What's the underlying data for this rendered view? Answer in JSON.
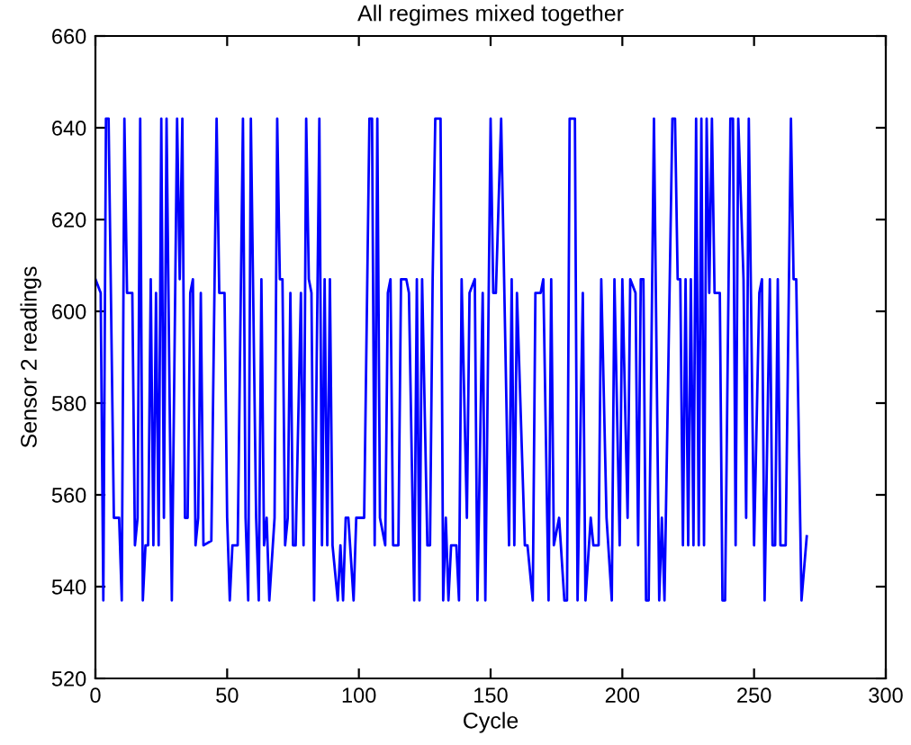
{
  "chart_data": {
    "type": "line",
    "title": "All regimes mixed together",
    "xlabel": "Cycle",
    "ylabel": "Sensor 2 readings",
    "xlim": [
      0,
      300
    ],
    "xticks": [
      0,
      50,
      100,
      150,
      200,
      250,
      300
    ],
    "ylim": [
      520,
      660
    ],
    "yticks": [
      520,
      540,
      560,
      580,
      600,
      620,
      640,
      660
    ],
    "grid": false,
    "legend": false,
    "marker": "none",
    "line_style": "solid",
    "series": [
      {
        "color": "#0000ff",
        "x": [
          0,
          2,
          3,
          4,
          5,
          7,
          9,
          10,
          11,
          12,
          14,
          15,
          16,
          17,
          18,
          19,
          20,
          21,
          22,
          23,
          24,
          25,
          26,
          27,
          29,
          31,
          32,
          33,
          34,
          35,
          36,
          37,
          38,
          39,
          40,
          41,
          44,
          46,
          47,
          49,
          50,
          51,
          52,
          54,
          56,
          57,
          58,
          59,
          61,
          62,
          63,
          64,
          65,
          66,
          68,
          69,
          70,
          71,
          72,
          73,
          74,
          75,
          76,
          78,
          79,
          80,
          81,
          82,
          83,
          85,
          86,
          87,
          88,
          89,
          90,
          92,
          93,
          94,
          95,
          96,
          98,
          99,
          101,
          102,
          104,
          105,
          106,
          107,
          108,
          110,
          111,
          112,
          113,
          115,
          116,
          118,
          119,
          121,
          122,
          123,
          124,
          126,
          127,
          128,
          129,
          131,
          132,
          133,
          134,
          135,
          137,
          138,
          139,
          141,
          142,
          144,
          145,
          147,
          148,
          150,
          151,
          152,
          154,
          157,
          158,
          159,
          160,
          163,
          164,
          166,
          167,
          169,
          170,
          172,
          173,
          174,
          176,
          178,
          179,
          180,
          182,
          183,
          185,
          186,
          188,
          189,
          191,
          192,
          194,
          196,
          197,
          199,
          200,
          202,
          203,
          205,
          206,
          207,
          208,
          209,
          210,
          212,
          214,
          215,
          216,
          219,
          220,
          221,
          222,
          223,
          224,
          225,
          226,
          227,
          228,
          229,
          230,
          231,
          232,
          233,
          234,
          235,
          237,
          238,
          239,
          241,
          242,
          243,
          244,
          246,
          247,
          248,
          250,
          252,
          253,
          254,
          256,
          257,
          258,
          259,
          260,
          262,
          264,
          265,
          266,
          268,
          270
        ],
        "values": [
          607,
          604,
          537,
          642,
          642,
          555,
          555,
          537,
          642,
          604,
          604,
          549,
          555,
          642,
          537,
          549,
          549,
          607,
          549,
          604,
          549,
          642,
          555,
          642,
          537,
          642,
          607,
          642,
          555,
          555,
          604,
          607,
          549,
          555,
          604,
          549,
          550,
          642,
          604,
          604,
          555,
          537,
          549,
          549,
          642,
          555,
          537,
          642,
          555,
          537,
          607,
          549,
          555,
          537,
          555,
          642,
          607,
          607,
          549,
          555,
          604,
          549,
          549,
          604,
          549,
          642,
          607,
          604,
          537,
          642,
          549,
          607,
          549,
          607,
          549,
          537,
          549,
          537,
          555,
          555,
          537,
          555,
          555,
          555,
          642,
          642,
          549,
          642,
          555,
          549,
          604,
          607,
          549,
          549,
          607,
          607,
          604,
          537,
          607,
          537,
          607,
          549,
          549,
          607,
          642,
          642,
          537,
          555,
          537,
          549,
          549,
          537,
          607,
          555,
          604,
          607,
          537,
          604,
          537,
          642,
          604,
          604,
          642,
          549,
          607,
          549,
          604,
          549,
          549,
          537,
          604,
          604,
          607,
          537,
          607,
          549,
          555,
          537,
          537,
          642,
          642,
          537,
          604,
          537,
          555,
          549,
          549,
          607,
          555,
          537,
          607,
          549,
          607,
          555,
          607,
          604,
          549,
          607,
          607,
          537,
          537,
          642,
          537,
          555,
          537,
          642,
          642,
          607,
          607,
          549,
          607,
          549,
          607,
          549,
          642,
          549,
          642,
          549,
          642,
          604,
          642,
          604,
          604,
          537,
          537,
          642,
          642,
          549,
          642,
          607,
          555,
          642,
          549,
          604,
          607,
          537,
          607,
          549,
          549,
          607,
          549,
          549,
          642,
          607,
          607,
          537,
          551
        ]
      }
    ]
  }
}
